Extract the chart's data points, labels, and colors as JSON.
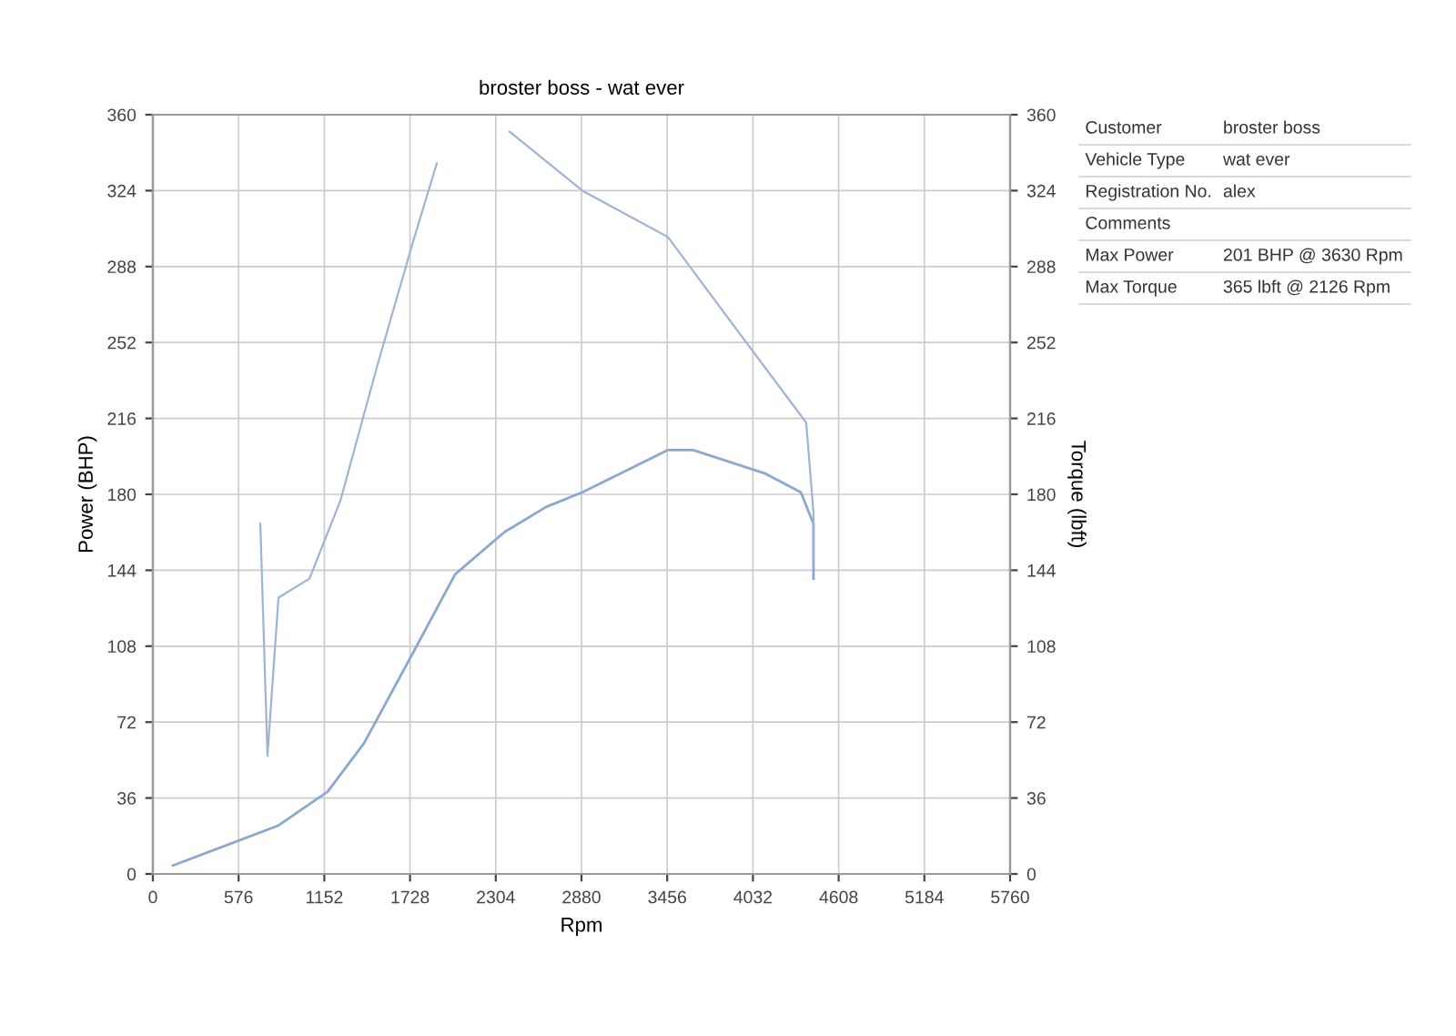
{
  "chart_data": {
    "type": "line",
    "title": "broster boss - wat ever",
    "xlabel": "Rpm",
    "ylabel": "Power (BHP)",
    "y2label": "Torque (lbft)",
    "xlim": [
      0,
      5760
    ],
    "xticks": [
      0,
      576,
      1152,
      1728,
      2304,
      2880,
      3456,
      4032,
      4608,
      5184,
      5760
    ],
    "ylim": [
      0,
      360
    ],
    "yticks": [
      0,
      36,
      72,
      108,
      144,
      180,
      216,
      252,
      288,
      324,
      360
    ],
    "y2lim": [
      0,
      360
    ],
    "y2ticks": [
      0,
      36,
      72,
      108,
      144,
      180,
      216,
      252,
      288,
      324,
      360
    ],
    "grid": true,
    "series": [
      {
        "color": "#8aa8d0",
        "x": [
          134,
          844,
          1174,
          1419,
          1749,
          2030,
          2360,
          2642,
          2886,
          3461,
          3630,
          4109,
          4354,
          4439,
          4439
        ],
        "values": [
          4,
          23,
          39,
          62,
          105,
          142,
          162,
          174,
          181,
          201,
          201,
          190,
          181,
          166,
          140
        ]
      },
      {
        "color": "#9fb4d4",
        "axis": "y2",
        "x": [
          722,
          770,
          844,
          1052,
          1260,
          1504,
          1749,
          1908,
          2126,
          2397,
          2886,
          3461,
          3987,
          4390,
          4439,
          4439
        ],
        "values": [
          166,
          56,
          131,
          140,
          177,
          240,
          300,
          337,
          null,
          352,
          324,
          302,
          252,
          214,
          171,
          148
        ]
      }
    ],
    "annotations": [
      "Customer",
      "broster boss",
      "Vehicle Type",
      "wat ever",
      "Registration No.",
      "alex",
      "Comments",
      "Max Power",
      "201 BHP @ 3630 Rpm",
      "Max Torque",
      "365 lbft @ 2126 Rpm"
    ]
  }
}
